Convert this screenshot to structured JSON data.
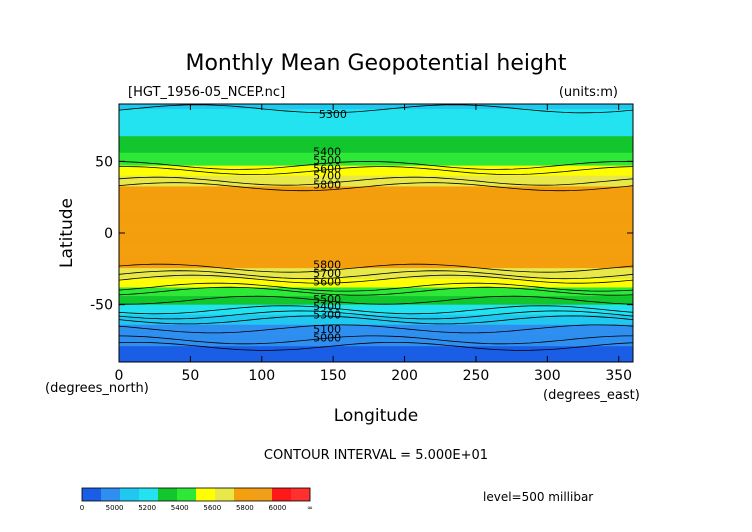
{
  "chart_data": {
    "type": "contour",
    "title": "Monthly Mean Geopotential height",
    "subtitle_left": "[HGT_1956-05_NCEP.nc]",
    "units": "(units:m)",
    "xlabel": "Longitude",
    "ylabel": "Latitude",
    "x_unit_label": "(degrees_east)",
    "y_unit_label": "(degrees_north)",
    "x_ticks": [
      0,
      50,
      100,
      150,
      200,
      250,
      300,
      350
    ],
    "y_ticks": [
      50,
      0,
      -50
    ],
    "xlim": [
      0,
      360
    ],
    "ylim": [
      -90,
      90
    ],
    "contour_interval_text": "CONTOUR INTERVAL = 5.000E+01",
    "level_text": "level=500 millibar",
    "contour_labels": [
      {
        "text": "5300",
        "lon": 140,
        "lat": 83
      },
      {
        "text": "5400",
        "lon": 136,
        "lat": 57
      },
      {
        "text": "5500",
        "lon": 136,
        "lat": 51
      },
      {
        "text": "5600",
        "lon": 136,
        "lat": 45
      },
      {
        "text": "5700",
        "lon": 136,
        "lat": 40
      },
      {
        "text": "5800",
        "lon": 136,
        "lat": 34
      },
      {
        "text": "5800",
        "lon": 136,
        "lat": -22
      },
      {
        "text": "5700",
        "lon": 136,
        "lat": -28
      },
      {
        "text": "5600",
        "lon": 136,
        "lat": -34
      },
      {
        "text": "5500",
        "lon": 136,
        "lat": -46
      },
      {
        "text": "5400",
        "lon": 136,
        "lat": -51
      },
      {
        "text": "5300",
        "lon": 136,
        "lat": -57
      },
      {
        "text": "5100",
        "lon": 136,
        "lat": -67
      },
      {
        "text": "5000",
        "lon": 136,
        "lat": -73
      }
    ],
    "bands": [
      {
        "lat": 90,
        "value": 5290
      },
      {
        "lat": 80,
        "value": 5320
      },
      {
        "lat": 70,
        "value": 5380
      },
      {
        "lat": 60,
        "value": 5460
      },
      {
        "lat": 50,
        "value": 5560
      },
      {
        "lat": 40,
        "value": 5700
      },
      {
        "lat": 30,
        "value": 5830
      },
      {
        "lat": 0,
        "value": 5870
      },
      {
        "lat": -20,
        "value": 5850
      },
      {
        "lat": -30,
        "value": 5740
      },
      {
        "lat": -40,
        "value": 5560
      },
      {
        "lat": -50,
        "value": 5400
      },
      {
        "lat": -60,
        "value": 5260
      },
      {
        "lat": -70,
        "value": 5100
      },
      {
        "lat": -80,
        "value": 4990
      },
      {
        "lat": -90,
        "value": 4950
      }
    ],
    "colorbar": {
      "ticks": [
        "0",
        "5000",
        "5200",
        "5400",
        "5600",
        "5800",
        "6000",
        "∞"
      ],
      "colors": [
        "#1a5ee6",
        "#2f8ff0",
        "#20c8ef",
        "#22e3ef",
        "#12c62d",
        "#2ee838",
        "#ffff00",
        "#e8e84a",
        "#f49f0e",
        "#f0a018",
        "#ff1818",
        "#ff3030"
      ]
    },
    "fill_colors": {
      "lt5000": "#1a5ee6",
      "5000": "#2f8ff0",
      "5200": "#20c8ef",
      "5300": "#22e3ef",
      "5400": "#12c62d",
      "5500": "#2ee838",
      "5600": "#ffff00",
      "5700": "#e8e84a",
      "5800": "#f49f0e"
    }
  }
}
